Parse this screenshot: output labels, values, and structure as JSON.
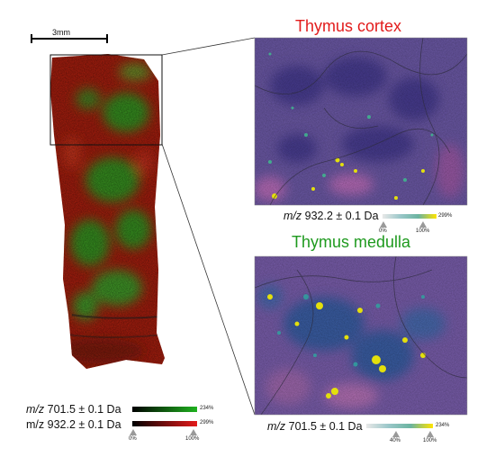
{
  "scale_label": "3mm",
  "cortex": {
    "title": "Thymus cortex",
    "mz_prefix": "m/z",
    "mz_value": "932.2 ± 0.1 Da",
    "max_label": "299%",
    "marker_low": "0%",
    "marker_high": "100%",
    "gradient_colors": [
      "#e8e8e8",
      "#9ac7c9",
      "#6ab4a0",
      "#ffe400"
    ]
  },
  "medulla": {
    "title": "Thymus medulla",
    "mz_prefix": "m/z",
    "mz_value": "701.5 ± 0.1 Da",
    "max_label": "234%",
    "marker_low": "40%",
    "marker_high": "100%",
    "gradient_colors": [
      "#e8e8e8",
      "#9ac7c9",
      "#6ab4a0",
      "#ffe400"
    ]
  },
  "legend": {
    "row1_prefix": "m/z",
    "row1_value": "701.5 ± 0.1 Da",
    "row1_max": "234%",
    "row1_color": "#1fb21f",
    "row2_prefix": "m/z",
    "row2_value": "932.2 ± 0.1 Da",
    "row2_max": "299%",
    "row2_color": "#e41a1a",
    "marker_low": "0%",
    "marker_high": "100%"
  },
  "colors": {
    "cortex_title": "#e21b1b",
    "medulla_title": "#1f9a1f",
    "tissue_red": "#c21e10",
    "tissue_green": "#2f9a24"
  }
}
